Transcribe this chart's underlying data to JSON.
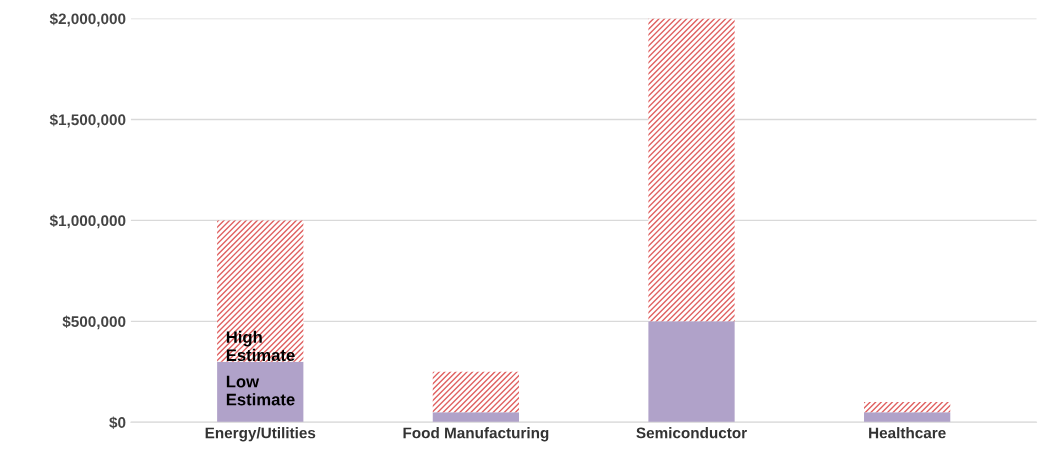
{
  "chart_data": {
    "type": "bar",
    "stacked": true,
    "categories": [
      "Energy/Utilities",
      "Food Manufacturing",
      "Semiconductor",
      "Healthcare"
    ],
    "series": [
      {
        "name": "Low Estimate",
        "color": "#b0a2c9",
        "values": [
          300000,
          50000,
          500000,
          50000
        ]
      },
      {
        "name": "High Estimate",
        "color": "#e06060",
        "values": [
          700000,
          200000,
          1500000,
          50000
        ]
      }
    ],
    "ylim": [
      0,
      2000000
    ],
    "yticks": [
      {
        "value": 0,
        "label": "$0"
      },
      {
        "value": 500000,
        "label": "$500,000"
      },
      {
        "value": 1000000,
        "label": "$1,000,000"
      },
      {
        "value": 1500000,
        "label": "$1,500,000"
      },
      {
        "value": 2000000,
        "label": "$2,000,000"
      }
    ],
    "grid": "y",
    "legend": false
  }
}
